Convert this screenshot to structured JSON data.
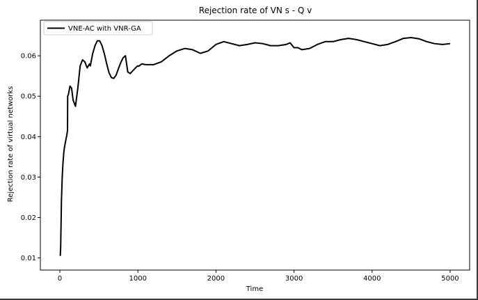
{
  "chart_data": {
    "type": "line",
    "title": "Rejection rate of VN s - Q v",
    "xlabel": "Time",
    "ylabel": "Rejection rate of virtual networks",
    "xlim": [
      -250,
      5250
    ],
    "ylim": [
      0.007,
      0.0688
    ],
    "xticks": [
      0,
      1000,
      2000,
      3000,
      4000,
      5000
    ],
    "yticks": [
      0.01,
      0.02,
      0.03,
      0.04,
      0.05,
      0.06
    ],
    "grid": false,
    "legend_position": "top-left",
    "series": [
      {
        "name": "VNE-AC with VNR-GA",
        "color": "#000000",
        "x": [
          5,
          10,
          15,
          20,
          30,
          40,
          50,
          60,
          70,
          80,
          90,
          98,
          100,
          110,
          120,
          130,
          150,
          170,
          200,
          230,
          260,
          290,
          320,
          350,
          380,
          390,
          400,
          420,
          450,
          480,
          510,
          540,
          570,
          600,
          630,
          660,
          690,
          720,
          750,
          780,
          810,
          840,
          870,
          900,
          930,
          960,
          990,
          1000,
          1010,
          1050,
          1100,
          1150,
          1200,
          1300,
          1400,
          1500,
          1600,
          1700,
          1800,
          1900,
          2000,
          2100,
          2200,
          2300,
          2400,
          2500,
          2600,
          2700,
          2800,
          2900,
          2950,
          3000,
          3050,
          3100,
          3200,
          3300,
          3400,
          3500,
          3600,
          3700,
          3800,
          3900,
          4000,
          4100,
          4200,
          4300,
          4400,
          4500,
          4600,
          4700,
          4800,
          4900,
          5000
        ],
        "values": [
          0.0105,
          0.0125,
          0.018,
          0.024,
          0.03,
          0.0335,
          0.036,
          0.0375,
          0.0385,
          0.0395,
          0.0405,
          0.0415,
          0.05,
          0.0505,
          0.0515,
          0.0525,
          0.052,
          0.049,
          0.0475,
          0.052,
          0.0575,
          0.059,
          0.0585,
          0.057,
          0.058,
          0.0575,
          0.0585,
          0.0605,
          0.0625,
          0.0637,
          0.0637,
          0.0625,
          0.0605,
          0.058,
          0.0558,
          0.0546,
          0.0544,
          0.0552,
          0.0568,
          0.0583,
          0.0595,
          0.06,
          0.056,
          0.0556,
          0.0562,
          0.0568,
          0.0574,
          0.0575,
          0.0574,
          0.058,
          0.0578,
          0.0578,
          0.0578,
          0.0585,
          0.06,
          0.0612,
          0.0618,
          0.0615,
          0.0606,
          0.0612,
          0.0628,
          0.0635,
          0.063,
          0.0625,
          0.0628,
          0.0632,
          0.063,
          0.0625,
          0.0625,
          0.0628,
          0.0632,
          0.062,
          0.062,
          0.0615,
          0.0618,
          0.0628,
          0.0635,
          0.0635,
          0.064,
          0.0643,
          0.064,
          0.0635,
          0.063,
          0.0625,
          0.0628,
          0.0635,
          0.0643,
          0.0645,
          0.0642,
          0.0635,
          0.063,
          0.0628,
          0.063
        ]
      }
    ]
  }
}
